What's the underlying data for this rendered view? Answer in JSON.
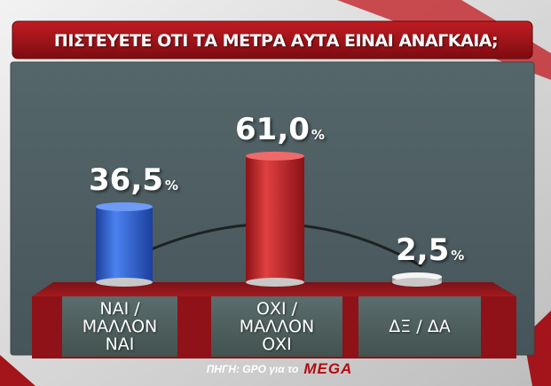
{
  "title": "ΠΙΣΤΕΥΕΤΕ ΟΤΙ ΤΑ ΜΕΤΡΑ ΑΥΤΑ ΕΙΝΑΙ ΑΝΑΓΚΑΙΑ;",
  "source": {
    "prefix": "ΠΗΓΗ: GPO για το",
    "brand": "MEGA"
  },
  "colors": {
    "background": "#d9d9d9",
    "panel": "#4c5e5a",
    "title_bar": "#a3141b",
    "stage_red": "#8e1217",
    "bar_blue": "#2f63d6",
    "bar_red": "#d02a2a",
    "bar_grey": "#d9d9d9"
  },
  "chart_data": {
    "type": "bar",
    "title": "ΠΙΣΤΕΥΕΤΕ ΟΤΙ ΤΑ ΜΕΤΡΑ ΑΥΤΑ ΕΙΝΑΙ ΑΝΑΓΚΑΙΑ;",
    "categories": [
      "ΝΑΙ / ΜΑΛΛΟΝ ΝΑΙ",
      "ΟΧΙ / ΜΑΛΛΟΝ ΟΧΙ",
      "ΔΞ / ΔΑ"
    ],
    "category_lines": [
      [
        "ΝΑΙ /",
        "ΜΑΛΛΟΝ",
        "ΝΑΙ"
      ],
      [
        "ΟΧΙ /",
        "ΜΑΛΛΟΝ",
        "ΟΧΙ"
      ],
      [
        "ΔΞ / ΔΑ"
      ]
    ],
    "values": [
      36.5,
      61.0,
      2.5
    ],
    "value_labels": [
      "36,5",
      "61,0",
      "2,5"
    ],
    "unit": "%",
    "bar_colors": [
      "#2f63d6",
      "#d02a2a",
      "#d9d9d9"
    ],
    "ylim": [
      0,
      100
    ]
  }
}
